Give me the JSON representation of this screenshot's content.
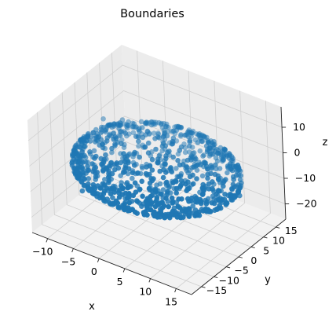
{
  "chart_data": {
    "type": "scatter",
    "projection": "3d",
    "title": "Boundaries",
    "xlabel": "x",
    "ylabel": "y",
    "zlabel": "z",
    "xlim": [
      -13,
      18
    ],
    "ylim": [
      -19,
      19
    ],
    "zlim": [
      -26,
      18
    ],
    "xticks": [
      -10,
      -5,
      0,
      5,
      10,
      15
    ],
    "yticks": [
      -15,
      -10,
      -5,
      0,
      5,
      10,
      15
    ],
    "zticks": [
      -20,
      -10,
      0,
      10
    ],
    "grid": true,
    "marker_color": "#1f77b4",
    "ellipsoid": {
      "center": [
        2.5,
        0,
        -4
      ],
      "semi_axes": [
        14.5,
        16.5,
        8
      ]
    },
    "point_count": 1000,
    "series": [
      {
        "x": [
          -3.05,
          4.8,
          -6.6,
          -11.53,
          4.56,
          7.37,
          -8.07,
          11.6,
          -0.36,
          15.3,
          -10.13,
          13.71,
          16.69,
          3.95,
          -5.85,
          -1.99,
          8.89,
          3.26,
          3.13,
          -5.16,
          14.64,
          9.79,
          0.48,
          -9.54,
          0.21,
          11.26,
          -8.59,
          -5.93,
          6.81,
          15.11
        ],
        "y": [
          -14.56,
          12.43,
          4.93,
          7.73,
          -15.22,
          13.75,
          -8.38,
          3.96,
          -9.24,
          -6.52,
          0.89,
          -11.25,
          3.97,
          15.96,
          -12.85,
          14.11,
          -13.05,
          5.14,
          -5.23,
          10.41,
          6.97,
          -0.84,
          7.62,
          -4.32,
          16.2,
          11.89,
          9.33,
          -2.09,
          -10.11,
          -1.28
        ],
        "z": [
          -4.84,
          1.73,
          -10.51,
          -1.1,
          0.12,
          -6.27,
          2.91,
          -11.4,
          1.51,
          -4.99,
          -7.19,
          -2.04,
          -6.14,
          -2.06,
          -8.91,
          -1.92,
          -7.43,
          3.63,
          -11.57,
          -9.37,
          1.35,
          -11.88,
          2.73,
          2.12,
          -4.91,
          -6.06,
          -0.4,
          3.48,
          -10.85,
          -8.05
        ]
      }
    ]
  }
}
